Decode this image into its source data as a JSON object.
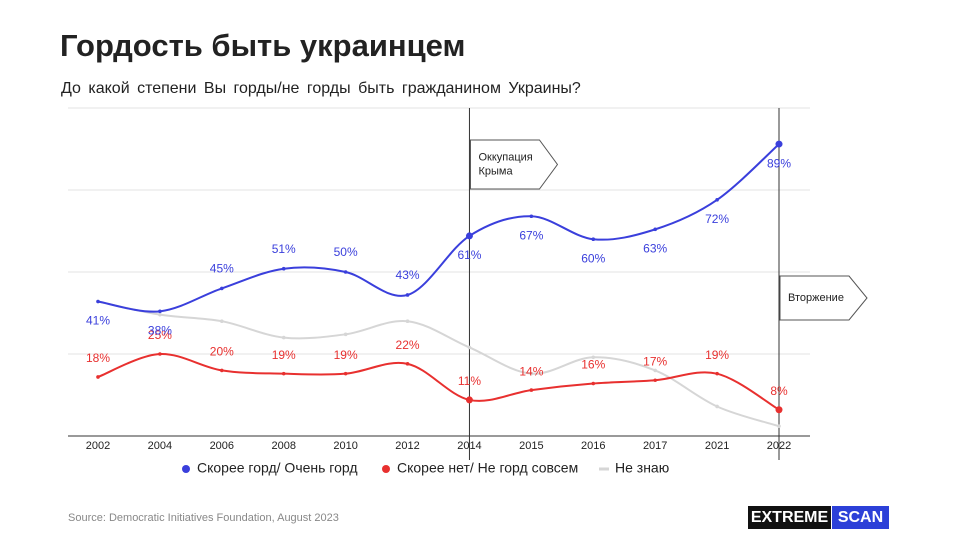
{
  "chart_data": {
    "type": "line",
    "title": "Гордость быть украинцем",
    "subtitle": "До какой степени Вы горды/не горды быть гражданином Украины?",
    "categories": [
      "2002",
      "2004",
      "2006",
      "2008",
      "2010",
      "2012",
      "2014",
      "2015",
      "2016",
      "2017",
      "2021",
      "2022"
    ],
    "series": [
      {
        "name": "Скорее горд/ Очень горд",
        "color": "#3a3fdc",
        "values": [
          41,
          38,
          45,
          51,
          50,
          43,
          61,
          67,
          60,
          63,
          72,
          89
        ],
        "value_labels": [
          "41%",
          "38%",
          "45%",
          "51%",
          "50%",
          "43%",
          "61%",
          "67%",
          "60%",
          "63%",
          "72%",
          "89%"
        ]
      },
      {
        "name": "Скорее нет/ Не горд совсем",
        "color": "#e8302f",
        "values": [
          18,
          25,
          20,
          19,
          19,
          22,
          11,
          14,
          16,
          17,
          19,
          8
        ],
        "value_labels": [
          "18%",
          "25%",
          "20%",
          "19%",
          "19%",
          "22%",
          "11%",
          "14%",
          "16%",
          "17%",
          "19%",
          "8%"
        ]
      },
      {
        "name": "Не знаю",
        "color": "#d6d6d6",
        "values": [
          41,
          37,
          35,
          30,
          31,
          35,
          27,
          19,
          24,
          20,
          9,
          3
        ]
      }
    ],
    "ylim": [
      0,
      100
    ],
    "yticks": [
      0,
      25,
      50,
      75,
      100
    ],
    "grid": true,
    "annotations": [
      {
        "x": "2014",
        "lines": [
          "Оккупация",
          "Крыма"
        ]
      },
      {
        "x": "2022",
        "lines": [
          "Вторжение"
        ]
      }
    ],
    "source": "Source: Democratic Initiatives Foundation, August 2023",
    "logo": [
      "EXTREME",
      "SCAN"
    ]
  }
}
